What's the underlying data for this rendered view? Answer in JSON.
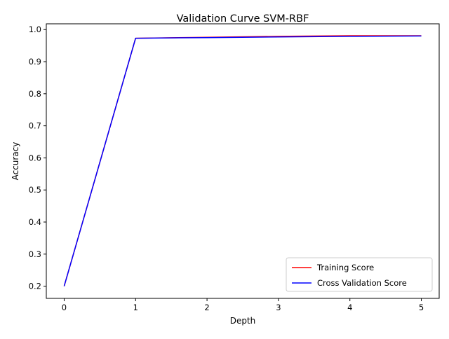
{
  "chart_data": {
    "type": "line",
    "title": "Validation Curve SVM-RBF",
    "xlabel": "Depth",
    "ylabel": "Accuracy",
    "xlim": [
      -0.25,
      5.25
    ],
    "ylim": [
      0.162,
      1.018
    ],
    "xticks": [
      0,
      1,
      2,
      3,
      4,
      5
    ],
    "yticks": [
      0.2,
      0.3,
      0.4,
      0.5,
      0.6,
      0.7,
      0.8,
      0.9,
      1.0
    ],
    "x": [
      0,
      1,
      2,
      3,
      4,
      5
    ],
    "series": [
      {
        "name": "Training Score",
        "color": "#ff0000",
        "values": [
          0.2,
          0.973,
          0.976,
          0.979,
          0.981,
          0.981
        ]
      },
      {
        "name": "Cross Validation Score",
        "color": "#0000ff",
        "values": [
          0.2,
          0.973,
          0.975,
          0.977,
          0.979,
          0.98
        ]
      }
    ],
    "grid": false,
    "legend_position": "lower-right"
  }
}
